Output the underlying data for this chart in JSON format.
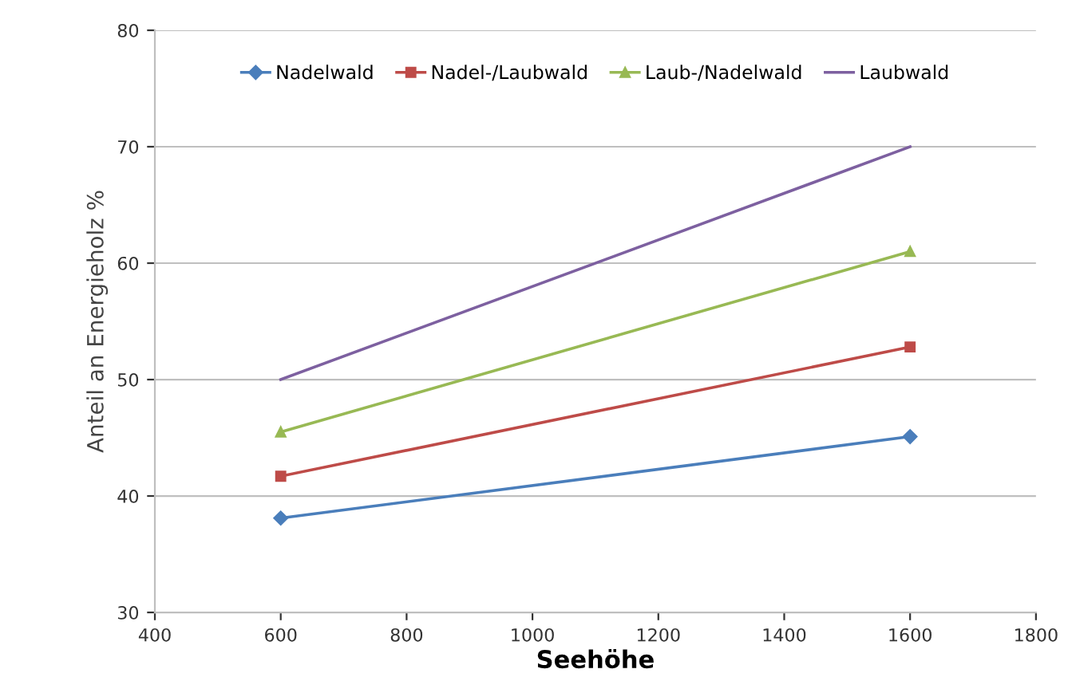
{
  "chart_data": {
    "type": "line",
    "xlabel": "Seehöhe",
    "ylabel": "Anteil an Energieholz %",
    "x": [
      600,
      1600
    ],
    "series": [
      {
        "name": "Nadelwald",
        "color": "#4a7ebb",
        "values": [
          38.1,
          45.1
        ],
        "marker": "diamond"
      },
      {
        "name": "Nadel-/Laubwald",
        "color": "#be4b48",
        "values": [
          41.7,
          52.8
        ],
        "marker": "square"
      },
      {
        "name": "Laub-/Nadelwald",
        "color": "#98b954",
        "values": [
          45.5,
          61
        ],
        "marker": "triangle"
      },
      {
        "name": "Laubwald",
        "color": "#7d60a0",
        "values": [
          50,
          70
        ],
        "marker": "none"
      }
    ],
    "xlim": [
      400,
      1800
    ],
    "xticks": [
      400,
      600,
      800,
      1000,
      1200,
      1400,
      1600,
      1800
    ],
    "ylim": [
      30,
      80
    ],
    "yticks": [
      30,
      40,
      50,
      60,
      70,
      80
    ],
    "grid": "y",
    "legend": "top",
    "line_style": "solid"
  }
}
